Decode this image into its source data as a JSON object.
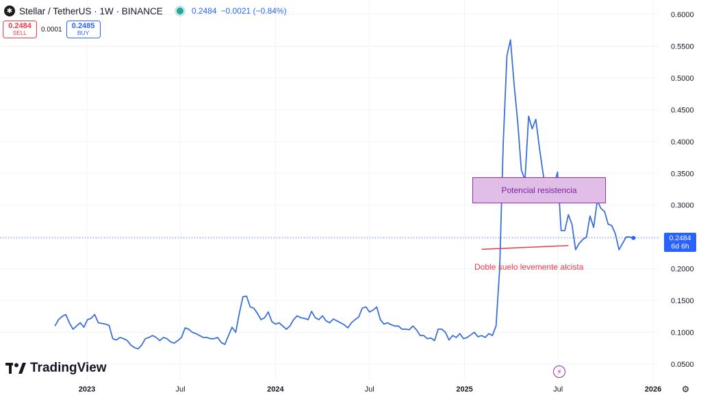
{
  "header": {
    "symbol": "Stellar / TetherUS · 1W · BINANCE",
    "logo_glyph": "✱",
    "last_price": "0.2484",
    "change": "−0.0021 (−0.84%)"
  },
  "trade": {
    "sell_price": "0.2484",
    "sell_label": "SELL",
    "spread": "0.0001",
    "buy_price": "0.2485",
    "buy_label": "BUY"
  },
  "price_tag": {
    "price": "0.2484",
    "countdown": "6d 6h"
  },
  "annotations": {
    "resistance_label": "Potencial resistencia",
    "support_label": "Doble suelo levemente alcista"
  },
  "branding": {
    "name": "TradingView"
  },
  "colors": {
    "line": "#3a6fd8",
    "resistance_fill": "#e1bee7",
    "resistance_border": "#9c27b0",
    "support_line": "#f23645",
    "price_tag": "#2962ff"
  },
  "icons": {
    "flash": "flash-icon",
    "settings": "settings-icon",
    "logo": "stellar-logo-icon"
  },
  "chart_data": {
    "type": "line",
    "title": "Stellar / TetherUS · 1W · BINANCE",
    "xlabel": "",
    "ylabel": "",
    "ylim": [
      0.03,
      0.61
    ],
    "y_ticks": [
      "0.6000",
      "0.5500",
      "0.5000",
      "0.4500",
      "0.4000",
      "0.3500",
      "0.3000",
      "0.2500",
      "0.2000",
      "0.1500",
      "0.1000",
      "0.0500"
    ],
    "x_ticks": [
      {
        "label": "2023",
        "date": "2023-01-01",
        "bold": true
      },
      {
        "label": "Jul",
        "date": "2023-07-01",
        "bold": false
      },
      {
        "label": "2024",
        "date": "2024-01-01",
        "bold": true
      },
      {
        "label": "Jul",
        "date": "2024-07-01",
        "bold": false
      },
      {
        "label": "2025",
        "date": "2025-01-01",
        "bold": true
      },
      {
        "label": "Jul",
        "date": "2025-07-01",
        "bold": false
      },
      {
        "label": "2026",
        "date": "2026-01-01",
        "bold": true
      }
    ],
    "grid": true,
    "current_price": 0.2484,
    "resistance_zone": {
      "from": "2025-01-06",
      "to": "2025-05-19",
      "low": 0.303,
      "high": 0.345
    },
    "support_line": {
      "from": "2025-02-03",
      "to": "2025-07-21",
      "low": 0.2305,
      "high": 0.2365
    },
    "series": [
      {
        "values": [
          [
            0.11,
            0.12,
            0.125,
            0.128,
            0.115,
            0.105,
            0.11,
            0.115,
            0.108,
            0.12,
            0.122,
            0.128,
            0.115,
            0.114,
            0.113,
            0.111,
            0.09,
            0.088,
            0.092,
            0.09,
            0.087,
            0.08,
            0.076,
            0.074,
            0.08,
            0.09,
            0.092,
            0.095,
            0.092,
            0.087,
            0.092,
            0.09,
            0.085,
            0.083,
            0.087,
            0.092,
            0.107,
            0.105,
            0.1,
            0.098,
            0.095,
            0.092,
            0.092,
            0.09,
            0.09,
            0.092,
            0.084,
            0.081,
            0.095,
            0.108
          ],
          [
            0.1,
            0.13,
            0.156,
            0.157,
            0.14,
            0.138,
            0.13,
            0.12,
            0.123,
            0.132,
            0.117,
            0.113,
            0.115,
            0.11,
            0.105,
            0.11,
            0.12,
            0.126,
            0.123,
            0.122,
            0.12,
            0.133,
            0.123,
            0.12,
            0.126,
            0.118,
            0.115,
            0.121,
            0.118,
            0.115,
            0.112,
            0.107,
            0.115,
            0.12,
            0.124,
            0.138,
            0.14,
            0.132,
            0.135,
            0.14,
            0.12,
            0.113,
            0.115
          ],
          [
            0.112,
            0.11,
            0.11,
            0.105,
            0.105,
            0.104,
            0.11,
            0.104,
            0.095,
            0.095,
            0.09,
            0.091,
            0.087,
            0.105,
            0.105,
            0.1,
            0.088,
            0.095,
            0.092,
            0.098,
            0.09,
            0.092,
            0.096,
            0.1,
            0.093,
            0.095,
            0.092,
            0.098,
            0.095,
            0.11,
            0.2,
            0.4,
            0.535,
            0.56,
            0.49,
            0.43,
            0.355,
            0.34,
            0.44,
            0.42,
            0.435,
            0.39,
            0.35,
            0.315,
            0.34,
            0.33,
            0.352,
            0.26,
            0.26,
            0.285,
            0.27,
            0.23,
            0.24,
            0.246,
            0.25,
            0.283,
            0.265,
            0.307,
            0.295,
            0.29,
            0.27,
            0.268,
            0.255,
            0.23,
            0.24,
            0.25,
            0.25,
            0.2484
          ]
        ],
        "x_start": "2022-10-31",
        "x_step_days": 7
      }
    ]
  }
}
